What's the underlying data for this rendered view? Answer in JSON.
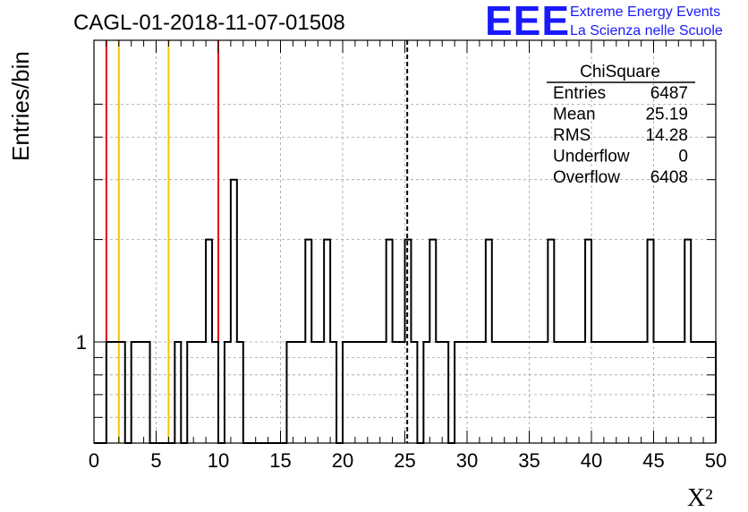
{
  "header": {
    "title": "CAGL-01-2018-11-07-01508",
    "logo_text": "EEE",
    "logo_line1": "Extreme Energy Events",
    "logo_line2": "La Scienza nelle Scuole"
  },
  "colors": {
    "histogram": "#000000",
    "red_cut": "#e8001c",
    "yellow_cut": "#f3c400",
    "mean_line": "#000000",
    "grid": "#a0a0a0",
    "logo": "#1a1aff"
  },
  "chart_data": {
    "type": "histogram",
    "title": "CAGL-01-2018-11-07-01508",
    "xlabel": "X²",
    "ylabel": "Entries/bin",
    "xlim": [
      0,
      50
    ],
    "ylog": true,
    "grid": true,
    "bin_width": 0.5,
    "bin_start": 0,
    "xticks": [
      0,
      5,
      10,
      15,
      20,
      25,
      30,
      35,
      40,
      45,
      50
    ],
    "yticks": [
      1
    ],
    "counts": [
      0,
      0,
      1,
      1,
      1,
      0,
      1,
      1,
      1,
      0,
      0,
      0,
      0,
      1,
      0,
      1,
      1,
      1,
      2,
      1,
      0,
      1,
      3,
      1,
      0,
      0,
      0,
      0,
      0,
      0,
      0,
      1,
      1,
      1,
      2,
      1,
      1,
      2,
      1,
      0,
      1,
      1,
      1,
      1,
      1,
      1,
      1,
      2,
      1,
      1,
      2,
      1,
      0,
      1,
      2,
      1,
      1,
      0,
      1,
      1,
      1,
      1,
      1,
      2,
      1,
      1,
      1,
      1,
      1,
      1,
      1,
      1,
      1,
      2,
      1,
      1,
      1,
      1,
      1,
      2,
      1,
      1,
      1,
      1,
      1,
      1,
      1,
      1,
      1,
      2,
      1,
      1,
      1,
      1,
      1,
      2,
      1,
      1,
      1,
      1
    ],
    "vlines": [
      {
        "x": 1.0,
        "color": "#e8001c",
        "style": "solid"
      },
      {
        "x": 2.0,
        "color": "#f3c400",
        "style": "solid"
      },
      {
        "x": 6.0,
        "color": "#f3c400",
        "style": "solid"
      },
      {
        "x": 10.0,
        "color": "#e8001c",
        "style": "solid"
      },
      {
        "x": 25.19,
        "color": "#000000",
        "style": "dashed"
      }
    ],
    "stats": {
      "title": "ChiSquare",
      "rows": [
        {
          "label": "Entries",
          "value": "6487"
        },
        {
          "label": "Mean",
          "value": "25.19"
        },
        {
          "label": "RMS",
          "value": "14.28"
        },
        {
          "label": "Underflow",
          "value": "0"
        },
        {
          "label": "Overflow",
          "value": "6408"
        }
      ]
    },
    "legend": "top-right"
  }
}
